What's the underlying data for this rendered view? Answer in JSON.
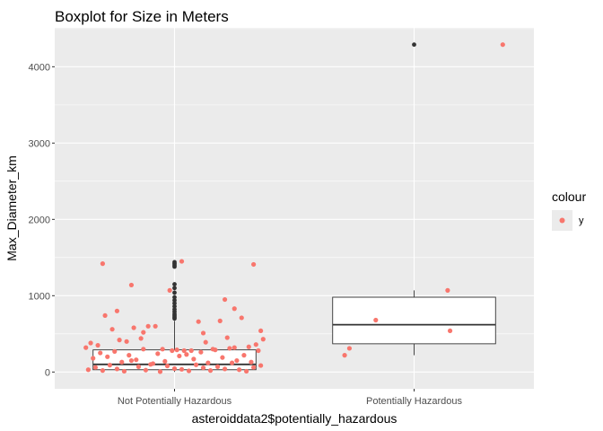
{
  "chart_data": {
    "type": "boxplot",
    "title": "Boxplot for Size in Meters",
    "xlabel": "asteroiddata2$potentially_hazardous",
    "ylabel": "Max_Diameter_km",
    "categories": [
      "Not Potentially Hazardous",
      "Potentially Hazardous"
    ],
    "y_ticks": [
      "0",
      "1000",
      "2000",
      "3000",
      "4000"
    ],
    "y_tick_values": [
      0,
      1000,
      2000,
      3000,
      4000
    ],
    "ylim": [
      -220,
      4510
    ],
    "grid": true,
    "background": "#ebebeb",
    "legend": {
      "title": "colour",
      "items": [
        {
          "label": "y",
          "color": "#f8766d"
        }
      ],
      "position": "right"
    },
    "boxes": [
      {
        "category": "Not Potentially Hazardous",
        "q1": 30,
        "median": 100,
        "q3": 290,
        "whisker_low": 0,
        "whisker_high": 670,
        "outliers": [
          700,
          720,
          740,
          760,
          790,
          820,
          860,
          900,
          940,
          980,
          1040,
          1100,
          1150,
          1380,
          1400,
          1420,
          1440
        ]
      },
      {
        "category": "Potentially Hazardous",
        "q1": 370,
        "median": 620,
        "q3": 980,
        "whisker_low": 220,
        "whisker_high": 1070,
        "outliers": [
          4290
        ]
      }
    ],
    "points": [
      {
        "category": "Not Potentially Hazardous",
        "x_offset": [
          -0.36,
          -0.33,
          -0.3,
          -0.27,
          -0.24,
          -0.21,
          -0.18,
          -0.15,
          -0.12,
          -0.09,
          -0.06,
          -0.03,
          0.0,
          0.03,
          0.06,
          0.09,
          0.12,
          0.15,
          0.18,
          0.21,
          0.24,
          0.27,
          0.3,
          0.33,
          0.36,
          -0.34,
          -0.28,
          -0.22,
          -0.16,
          -0.1,
          -0.04,
          0.02,
          0.08,
          0.14,
          0.2,
          0.26,
          0.32,
          -0.31,
          -0.25,
          -0.19,
          -0.13,
          -0.07,
          -0.01,
          0.05,
          0.11,
          0.17,
          0.23,
          0.29,
          0.35,
          -0.37,
          -0.32,
          -0.23,
          -0.14,
          -0.05,
          0.04,
          0.13,
          0.22,
          0.31,
          0.37,
          -0.26,
          -0.17,
          -0.08,
          0.07,
          0.16,
          0.25,
          0.34,
          -0.35,
          -0.2,
          0.01,
          0.19,
          0.36,
          -0.11,
          0.1,
          -0.29,
          0.28,
          -0.02,
          -0.18,
          0.12,
          0.33,
          -0.3,
          -0.24,
          0.21,
          0.25,
          0.03,
          -0.13
        ],
        "y": [
          30,
          60,
          20,
          90,
          40,
          10,
          150,
          70,
          25,
          110,
          5,
          80,
          45,
          35,
          15,
          95,
          55,
          20,
          70,
          40,
          120,
          30,
          10,
          60,
          85,
          180,
          200,
          130,
          160,
          100,
          140,
          210,
          170,
          120,
          190,
          150,
          130,
          250,
          270,
          220,
          300,
          240,
          280,
          230,
          260,
          290,
          310,
          220,
          280,
          320,
          350,
          420,
          440,
          300,
          280,
          390,
          450,
          330,
          430,
          560,
          580,
          600,
          280,
          300,
          320,
          360,
          380,
          400,
          290,
          670,
          540,
          600,
          660,
          740,
          710,
          1070,
          1140,
          510,
          1410,
          1420,
          800,
          950,
          830,
          1450,
          520
        ],
        "color": "#f8766d"
      },
      {
        "category": "Potentially Hazardous",
        "x_offset": [
          -0.29,
          -0.27,
          -0.16,
          0.14,
          0.15,
          0.37
        ],
        "y": [
          220,
          310,
          680,
          1070,
          540,
          4290
        ],
        "color": "#f8766d"
      }
    ]
  }
}
